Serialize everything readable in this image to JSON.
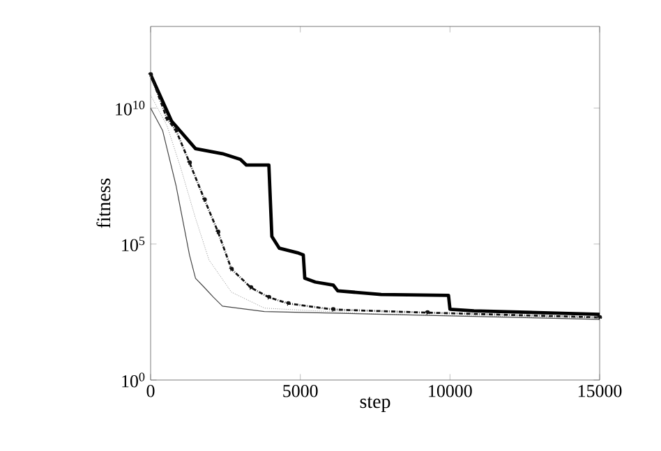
{
  "chart_data": {
    "type": "line",
    "xlabel": "step",
    "ylabel": "fitness",
    "log": "y",
    "xlim": [
      0,
      15000
    ],
    "xticks": [
      0,
      5000,
      10000,
      15000
    ],
    "ylim": [
      1,
      10000000000000.0
    ],
    "yticks": [
      {
        "value": 1,
        "label": "10$^{0}$"
      },
      {
        "value": 100000,
        "label": "10$^{5}$"
      },
      {
        "value": 10000000000,
        "label": "10$^{10}$"
      }
    ],
    "series": [
      {
        "color": "#000000",
        "line_style": "solid",
        "marker": "none",
        "x": [
          0,
          700,
          1500,
          2400,
          3000,
          3200,
          3950,
          4050,
          4300,
          4900,
          5100,
          5150,
          5500,
          6100,
          6250,
          7700,
          9950,
          10000,
          10800,
          15000
        ],
        "values": [
          170000000000.0,
          3300000000.0,
          320000000.0,
          210000000.0,
          130000000.0,
          80000000.0,
          80000000.0,
          190000.0,
          70000.0,
          48000.0,
          40000.0,
          5500,
          4000,
          3100,
          1900,
          1400,
          1300,
          400,
          350,
          260
        ]
      },
      {
        "color": "#111111",
        "line_style": "dashed",
        "marker": "circle",
        "x": [
          0,
          550,
          850,
          1300,
          1800,
          2250,
          2700,
          3350,
          3950,
          4600,
          6100,
          9250,
          15000
        ],
        "values": [
          170000000000.0,
          4000000000.0,
          1500000000.0,
          98000000.0,
          4300000.0,
          280000.0,
          12000.0,
          2500,
          1100,
          650,
          390,
          300,
          200
        ]
      },
      {
        "color": "#888888",
        "line_style": "dotted",
        "marker": "none",
        "x": [
          0,
          550,
          1000,
          1500,
          1950,
          2700,
          3800,
          7700,
          15000
        ],
        "values": [
          30000000000.0,
          2200000000.0,
          66000000.0,
          890000.0,
          26000.0,
          1700,
          440,
          260,
          190
        ]
      },
      {
        "color": "#444444",
        "line_style": "solid",
        "marker": "none",
        "x": [
          0,
          400,
          850,
          1300,
          1500,
          1800,
          2100,
          2400,
          3800,
          15000
        ],
        "values": [
          10000000000.0,
          1500000000.0,
          14000000.0,
          39000.0,
          5500,
          2500,
          1100,
          520,
          330,
          170
        ]
      }
    ]
  }
}
